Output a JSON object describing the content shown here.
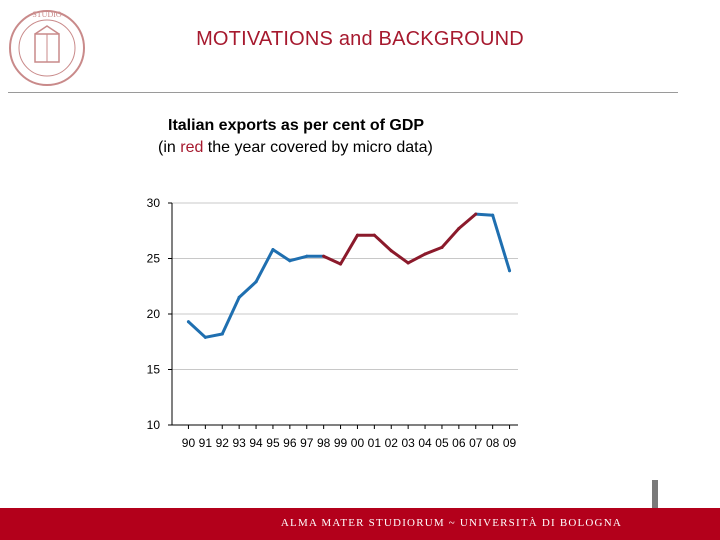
{
  "slide": {
    "title": "MOTIVATIONS  and BACKGROUND",
    "footer": "ALMA MATER STUDIORUM ~ UNIVERSITÀ DI BOLOGNA"
  },
  "colors": {
    "brand_red": "#a6192e",
    "footer_red": "#b3001b",
    "series_blue": "#1f6fb0",
    "series_red": "#8b1a2b"
  },
  "chart_data": {
    "type": "line",
    "title": "Italian exports as per cent of GDP",
    "subtitle_prefix": "(in ",
    "subtitle_highlight": "red",
    "subtitle_suffix": " the year covered by micro data)",
    "categories": [
      "90",
      "91",
      "92",
      "93",
      "94",
      "95",
      "96",
      "97",
      "98",
      "99",
      "00",
      "01",
      "02",
      "03",
      "04",
      "05",
      "06",
      "07",
      "08",
      "09"
    ],
    "values": [
      19.3,
      17.9,
      18.2,
      21.5,
      22.9,
      25.8,
      24.8,
      25.2,
      25.2,
      24.5,
      27.1,
      27.1,
      25.7,
      24.6,
      25.4,
      26.0,
      27.7,
      29.0,
      28.9,
      23.9
    ],
    "red_indices": [
      8,
      9,
      10,
      11,
      12,
      13,
      14,
      15,
      16,
      17
    ],
    "yticks": [
      10,
      15,
      20,
      25,
      30
    ],
    "ylim": [
      10,
      30
    ],
    "xlabel": "",
    "ylabel": ""
  }
}
